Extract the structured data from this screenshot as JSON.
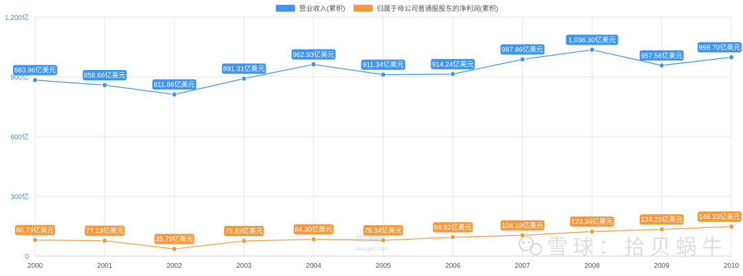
{
  "chart_data": {
    "type": "line",
    "title": "",
    "xlabel": "",
    "ylabel": "",
    "categories": [
      "2000",
      "2001",
      "2002",
      "2003",
      "2004",
      "2005",
      "2006",
      "2007",
      "2008",
      "2009",
      "2010"
    ],
    "ylim": [
      0,
      1200
    ],
    "yticks": [
      0,
      300,
      600,
      900,
      1200
    ],
    "ytick_labels": [
      "0",
      "300亿",
      "600亿",
      "900亿",
      "1,200亿"
    ],
    "grid": true,
    "legend_position": "top-center",
    "series": [
      {
        "name": "营业收入(累积)",
        "color": "#3e95f0",
        "values": [
          883.96,
          858.66,
          811.86,
          891.31,
          962.93,
          911.34,
          914.24,
          987.86,
          1036.3,
          957.58,
          998.7
        ],
        "labels": [
          "883.96亿美元",
          "858.66亿美元",
          "811.86亿美元",
          "891.31亿美元",
          "962.93亿美元",
          "911.34亿美元",
          "914.24亿美元",
          "987.86亿美元",
          "1,036.30亿美元",
          "957.58亿美元",
          "998.70亿美元"
        ]
      },
      {
        "name": "归属于母公司普通股股东的净利润(累积)",
        "color": "#f59a3c",
        "values": [
          80.73,
          77.13,
          35.79,
          75.83,
          84.3,
          79.34,
          94.92,
          104.18,
          123.34,
          134.25,
          148.33
        ],
        "labels": [
          "80.73亿美元",
          "77.13亿美元",
          "35.79亿美元",
          "75.83亿美元",
          "84.30亿美元",
          "79.34亿美元",
          "94.92亿美元",
          "104.18亿美元",
          "123.34亿美元",
          "134.25亿美元",
          "148.33亿美元"
        ]
      }
    ]
  },
  "watermarks": {
    "lixinger_text": "lixinger.com",
    "xueqiu_text": "雪球：拾贝蜗牛"
  },
  "colors": {
    "axis_text": "#3e95f0",
    "x_axis_text": "#555555",
    "grid": "#e6e6e6"
  }
}
